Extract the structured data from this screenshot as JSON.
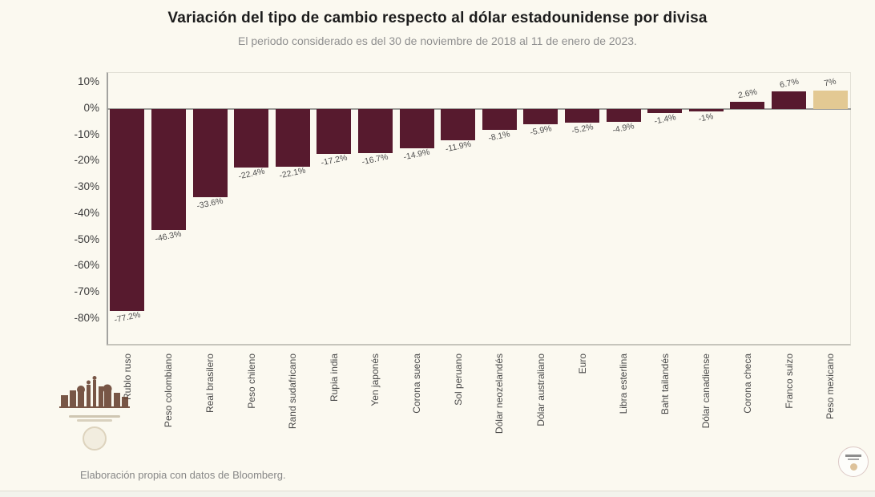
{
  "header": {
    "title": "Variación del tipo de cambio respecto al dólar estadounidense por divisa",
    "subtitle": "El periodo considerado es del 30 de noviembre de 2018 al 11 de enero de 2023."
  },
  "chart_data": {
    "type": "bar",
    "title": "Variación del tipo de cambio respecto al dólar estadounidense por divisa",
    "subtitle": "El periodo considerado es del 30 de noviembre de 2018 al 11 de enero de 2023.",
    "categories": [
      "Rublo ruso",
      "Peso colombiano",
      "Real brasilero",
      "Peso chileno",
      "Rand sudafricano",
      "Rupia india",
      "Yen japonés",
      "Corona sueca",
      "Sol peruano",
      "Dólar neozelandés",
      "Dólar australiano",
      "Euro",
      "Libra esterlina",
      "Baht tailandés",
      "Dólar canadiense",
      "Corona checa",
      "Franco suizo",
      "Peso mexicano"
    ],
    "values": [
      -77.2,
      -46.3,
      -33.6,
      -22.4,
      -22.1,
      -17.2,
      -16.7,
      -14.9,
      -11.9,
      -8.1,
      -5.9,
      -5.2,
      -4.9,
      -1.4,
      -1,
      2.6,
      6.7,
      7
    ],
    "value_labels": [
      "-77.2%",
      "-46.3%",
      "-33.6%",
      "-22.4%",
      "-22.1%",
      "-17.2%",
      "-16.7%",
      "-14.9%",
      "-11.9%",
      "-8.1%",
      "-5.9%",
      "-5.2%",
      "-4.9%",
      "-1.4%",
      "-1%",
      "2.6%",
      "6.7%",
      "7%"
    ],
    "y_ticks": [
      "10%",
      "0%",
      "-10%",
      "-20%",
      "-30%",
      "-40%",
      "-50%",
      "-60%",
      "-70%",
      "-80%"
    ],
    "y_tick_values": [
      10,
      0,
      -10,
      -20,
      -30,
      -40,
      -50,
      -60,
      -70,
      -80
    ],
    "ylim": [
      -90,
      14
    ],
    "xlabel": "",
    "ylabel": "",
    "grid": false,
    "legend": null,
    "bar_color_default": "#571a2e",
    "bar_color_highlight": "#e3c993",
    "highlight_index": 17
  },
  "footer": {
    "source": "Elaboración propia con datos de Bloomberg."
  },
  "icons": {
    "logo": "government-monuments-icon",
    "logo_seal": "pale-seal-icon",
    "corner_seal": "circular-seal-icon"
  },
  "colors": {
    "background": "#fbf9f0",
    "bar": "#571a2e",
    "bar_highlight": "#e3c993",
    "baseline": "#9d9d99",
    "title_text": "#1c1c1c",
    "subtitle_text": "#8f8f8f",
    "axis_text": "#3d3d3d",
    "source_text": "#878787"
  }
}
